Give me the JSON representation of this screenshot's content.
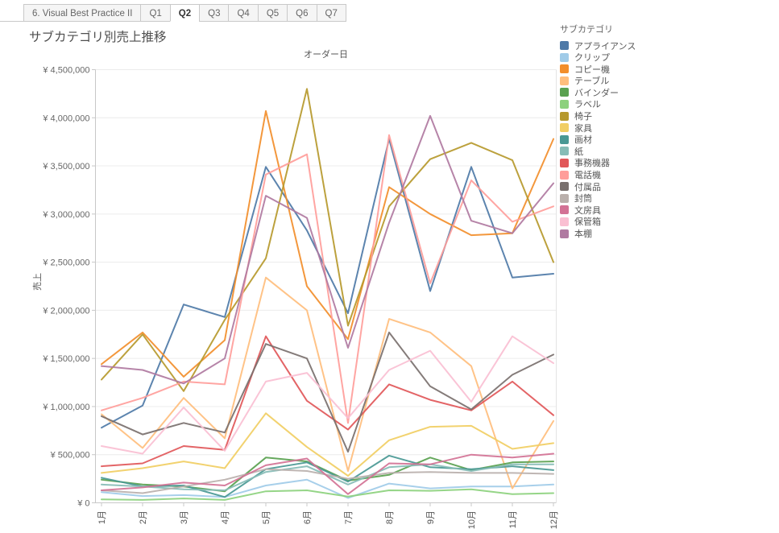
{
  "tabs": [
    {
      "label": "6. Visual Best Practice II",
      "active": false
    },
    {
      "label": "Q1",
      "active": false
    },
    {
      "label": "Q2",
      "active": true
    },
    {
      "label": "Q3",
      "active": false
    },
    {
      "label": "Q4",
      "active": false
    },
    {
      "label": "Q5",
      "active": false
    },
    {
      "label": "Q6",
      "active": false
    },
    {
      "label": "Q7",
      "active": false
    }
  ],
  "sheet_title": "サブカテゴリ別売上推移",
  "legend": {
    "title": "サブカテゴリ"
  },
  "chart_data": {
    "type": "line",
    "x_axis_title": "オーダー日",
    "y_axis_title": "売上",
    "categories": [
      "1月",
      "2月",
      "3月",
      "4月",
      "5月",
      "6月",
      "7月",
      "8月",
      "9月",
      "10月",
      "11月",
      "12月"
    ],
    "ylim": [
      0,
      4500000
    ],
    "y_tick_values": [
      0,
      500000,
      1000000,
      1500000,
      2000000,
      2500000,
      3000000,
      3500000,
      4000000,
      4500000
    ],
    "y_tick_labels": [
      "¥ 0",
      "¥ 500,000",
      "¥ 1,000,000",
      "¥ 1,500,000",
      "¥ 2,000,000",
      "¥ 2,500,000",
      "¥ 3,000,000",
      "¥ 3,500,000",
      "¥ 4,000,000",
      "¥ 4,500,000"
    ],
    "grid": true,
    "legend_position": "right",
    "series": [
      {
        "name": "アプライアンス",
        "color": "#4E79A7",
        "values": [
          780000,
          1010000,
          2060000,
          1930000,
          3490000,
          2830000,
          1970000,
          3780000,
          2200000,
          3490000,
          2340000,
          2380000
        ]
      },
      {
        "name": "クリップ",
        "color": "#A0CBE8",
        "values": [
          110000,
          70000,
          80000,
          60000,
          180000,
          240000,
          50000,
          200000,
          150000,
          170000,
          170000,
          190000
        ]
      },
      {
        "name": "コピー機",
        "color": "#F28E2B",
        "values": [
          1440000,
          1770000,
          1310000,
          1690000,
          4070000,
          2250000,
          1700000,
          3280000,
          3000000,
          2780000,
          2800000,
          3780000
        ]
      },
      {
        "name": "テーブル",
        "color": "#FFBE7D",
        "values": [
          920000,
          570000,
          1090000,
          670000,
          2340000,
          2000000,
          330000,
          1910000,
          1770000,
          1420000,
          150000,
          850000
        ]
      },
      {
        "name": "バインダー",
        "color": "#59A14F",
        "values": [
          240000,
          190000,
          170000,
          120000,
          470000,
          430000,
          230000,
          290000,
          470000,
          340000,
          420000,
          430000
        ]
      },
      {
        "name": "ラベル",
        "color": "#8CD17D",
        "values": [
          35000,
          30000,
          45000,
          30000,
          120000,
          130000,
          65000,
          130000,
          125000,
          140000,
          90000,
          100000
        ]
      },
      {
        "name": "椅子",
        "color": "#B6992D",
        "values": [
          1280000,
          1750000,
          1160000,
          1900000,
          2540000,
          4300000,
          1840000,
          3080000,
          3570000,
          3740000,
          3560000,
          2500000
        ]
      },
      {
        "name": "家具",
        "color": "#F1CE63",
        "values": [
          310000,
          360000,
          430000,
          360000,
          930000,
          580000,
          280000,
          650000,
          790000,
          800000,
          560000,
          620000
        ]
      },
      {
        "name": "画材",
        "color": "#499894",
        "values": [
          260000,
          170000,
          180000,
          60000,
          350000,
          420000,
          220000,
          490000,
          370000,
          350000,
          380000,
          340000
        ]
      },
      {
        "name": "紙",
        "color": "#86BCB6",
        "values": [
          190000,
          170000,
          140000,
          130000,
          320000,
          380000,
          190000,
          370000,
          400000,
          330000,
          400000,
          400000
        ]
      },
      {
        "name": "事務機器",
        "color": "#E15759",
        "values": [
          380000,
          410000,
          590000,
          550000,
          1730000,
          1060000,
          760000,
          1230000,
          1070000,
          960000,
          1260000,
          910000
        ]
      },
      {
        "name": "電話機",
        "color": "#FF9D9A",
        "values": [
          960000,
          1090000,
          1260000,
          1230000,
          3410000,
          3620000,
          830000,
          3820000,
          2280000,
          3350000,
          2920000,
          3080000
        ]
      },
      {
        "name": "付属品",
        "color": "#79706E",
        "values": [
          900000,
          710000,
          830000,
          730000,
          1650000,
          1500000,
          530000,
          1770000,
          1210000,
          970000,
          1330000,
          1540000
        ]
      },
      {
        "name": "封筒",
        "color": "#BAB0AC",
        "values": [
          130000,
          100000,
          170000,
          240000,
          350000,
          330000,
          250000,
          310000,
          320000,
          310000,
          310000,
          300000
        ]
      },
      {
        "name": "文房具",
        "color": "#D37295",
        "values": [
          130000,
          160000,
          210000,
          180000,
          390000,
          460000,
          90000,
          410000,
          400000,
          500000,
          470000,
          510000
        ]
      },
      {
        "name": "保管箱",
        "color": "#FABFD2",
        "values": [
          590000,
          510000,
          990000,
          540000,
          1260000,
          1350000,
          880000,
          1380000,
          1580000,
          1050000,
          1730000,
          1450000
        ]
      },
      {
        "name": "本棚",
        "color": "#B07AA1",
        "values": [
          1420000,
          1380000,
          1240000,
          1500000,
          3190000,
          2960000,
          1610000,
          2910000,
          4020000,
          2930000,
          2800000,
          3320000
        ]
      }
    ]
  }
}
